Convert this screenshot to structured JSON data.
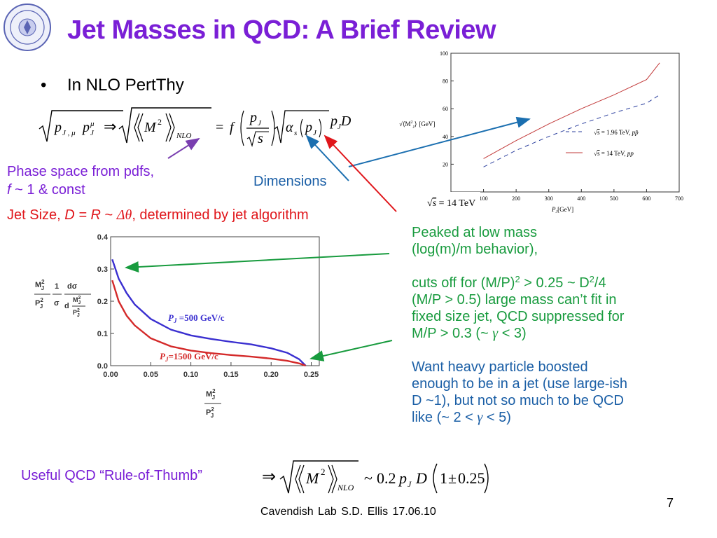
{
  "slide": {
    "title": "Jet Masses in QCD:  A Brief Review",
    "bullet": "In NLO PertThy",
    "page_number": "7",
    "footer": "Cavendish Lab     S.D. Ellis    17.06.10"
  },
  "annotations": {
    "phase_space_line1": "Phase space from pdfs,",
    "phase_space_line2_f": "f",
    "phase_space_line2_rest": " ~ 1 & const",
    "dimensions": "Dimensions",
    "jet_size_prefix": "Jet Size, ",
    "jet_size_math": "D = R",
    "jet_size_tilde": " ~ ",
    "jet_size_delta": "Δθ",
    "jet_size_suffix": ", determined by jet algorithm",
    "rule_of_thumb": "Useful QCD “Rule-of-Thumb”"
  },
  "right_text": {
    "p1_line1": "Peaked at low mass",
    "p1_line2": "(log(m)/m behavior),",
    "p2_line1_a": "cuts off for (M/P)",
    "p2_line1_b": " > 0.25 ~ D",
    "p2_line1_c": "/4",
    "p2_sup": "2",
    "p2_line2": "(M/P > 0.5) large mass can’t fit in",
    "p2_line3": "fixed size jet, QCD suppressed for",
    "p2_line4_a": "M/P > 0.3 (~ ",
    "p2_gamma": "γ",
    "p2_line4_b": " < 3)",
    "p3_line1": "Want heavy particle boosted",
    "p3_line2": "enough to be in a jet (use large-ish",
    "p3_line3": "D ~1), but not so much to be QCD",
    "p3_line4_a": "like (~ 2 < ",
    "p3_gamma": "γ",
    "p3_line4_b": " < 5)"
  },
  "formula1": {
    "lhs_p": "p",
    "lhs_sub1": "J , μ",
    "lhs_p2": "p",
    "lhs_sup2": "μ",
    "lhs_sub2": "J",
    "implies": "⇒",
    "M": "M",
    "M_sup": "2",
    "nlo": "NLO",
    "eq": "=",
    "f": "f",
    "frac_num_p": "p",
    "frac_num_sub": "J",
    "frac_den_s": "s",
    "alpha": "α",
    "alpha_sub": "s",
    "pj_p": "p",
    "pj_sub": "J",
    "tail_p": "p",
    "tail_sub": "J",
    "tail_D": "D"
  },
  "formula2": {
    "implies": "⇒",
    "M": "M",
    "M_sup": "2",
    "nlo": "NLO",
    "tilde": "~",
    "coef": "0.2",
    "p": "p",
    "p_sub": "J",
    "D": "D",
    "one": "1",
    "pm": "±",
    "frac": "0.25"
  },
  "plot_top": {
    "ylabel_sqrt": "⟨M",
    "ylabel_sup": "2",
    "ylabel_sub": "J",
    "ylabel_close": "⟩",
    "ylabel_unit": "[GeV]",
    "xlabel_p": "P",
    "xlabel_sub": "J",
    "xlabel_unit": "[GeV]",
    "legend1_s": "s",
    "legend1_val": " = 1.96 TeV, ",
    "legend1_proc": "pp̄",
    "legend2_s": "s",
    "legend2_val": " = 14 TeV, ",
    "legend2_proc": "pp",
    "overlay_s": "s",
    "overlay_val": " = 14 TeV",
    "legend1_color": "#2b3f9e",
    "legend2_color": "#c23a3a"
  },
  "plot_bottom": {
    "ylabel_M": "M",
    "ylabel_M_sup": "2",
    "ylabel_M_sub": "J",
    "ylabel_P": "P",
    "ylabel_P_sup": "2",
    "ylabel_P_sub": "J",
    "ylabel_one": "1",
    "ylabel_sigma": "σ",
    "ylabel_dsigma": "dσ",
    "ylabel_d": "d",
    "xlabel_M": "M",
    "xlabel_M_sup": "2",
    "xlabel_M_sub": "J",
    "xlabel_P": "P",
    "xlabel_P_sup": "2",
    "xlabel_P_sub": "J",
    "series1_label_p": "P",
    "series1_label_sub": "J",
    "series1_label_val": " =500 GeV/c",
    "series2_label_p": "P",
    "series2_label_sub": "J",
    "series2_label_val": "=1500 GeV/c",
    "series1_color": "#3a2fd0",
    "series2_color": "#d42a2a"
  },
  "chart_data": [
    {
      "type": "line",
      "x_ticks": [
        "100",
        "200",
        "300",
        "400",
        "500",
        "600",
        "700"
      ],
      "y_ticks": [
        "20",
        "40",
        "60",
        "80",
        "100"
      ],
      "xlim": [
        0,
        700
      ],
      "ylim": [
        0,
        100
      ],
      "series": [
        {
          "name": "√s = 1.96 TeV, pp̄",
          "style": "dashed",
          "x": [
            100,
            200,
            300,
            400,
            500,
            600,
            640
          ],
          "y": [
            18,
            30,
            40,
            49,
            57,
            64,
            70
          ]
        },
        {
          "name": "√s = 14 TeV, pp",
          "style": "solid",
          "x": [
            100,
            200,
            300,
            400,
            500,
            600,
            640
          ],
          "y": [
            24,
            37,
            49,
            60,
            70,
            81,
            93
          ]
        }
      ]
    },
    {
      "type": "line",
      "x_ticks": [
        "0.00",
        "0.05",
        "0.10",
        "0.15",
        "0.20",
        "0.25"
      ],
      "y_ticks": [
        "0.0",
        "0.1",
        "0.2",
        "0.3",
        "0.4"
      ],
      "xlim": [
        0,
        0.26
      ],
      "ylim": [
        0,
        0.4
      ],
      "series": [
        {
          "name": "P_J =500 GeV/c",
          "x": [
            0.002,
            0.01,
            0.02,
            0.03,
            0.05,
            0.075,
            0.1,
            0.125,
            0.15,
            0.175,
            0.2,
            0.22,
            0.235,
            0.243
          ],
          "y": [
            0.33,
            0.27,
            0.225,
            0.19,
            0.145,
            0.112,
            0.094,
            0.083,
            0.074,
            0.066,
            0.054,
            0.04,
            0.02,
            0.0
          ]
        },
        {
          "name": "P_J=1500 GeV/c",
          "x": [
            0.002,
            0.01,
            0.02,
            0.03,
            0.05,
            0.075,
            0.1,
            0.125,
            0.15,
            0.175,
            0.2,
            0.22,
            0.235,
            0.243
          ],
          "y": [
            0.265,
            0.2,
            0.155,
            0.125,
            0.085,
            0.06,
            0.047,
            0.039,
            0.033,
            0.028,
            0.022,
            0.015,
            0.007,
            0.0
          ]
        }
      ]
    }
  ]
}
